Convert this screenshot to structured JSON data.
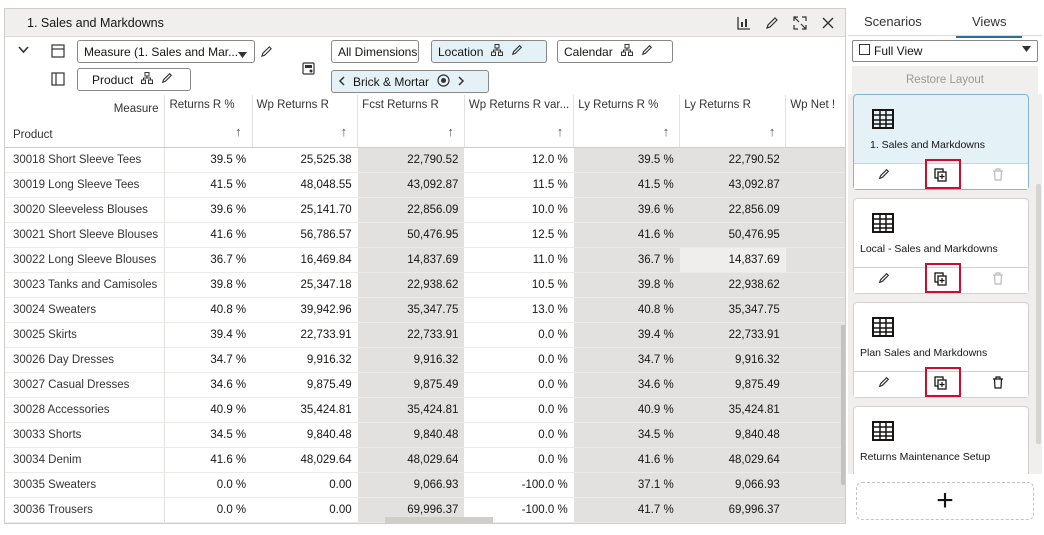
{
  "main": {
    "title": "1. Sales and Markdowns",
    "toolbar": {
      "measure": "Measure (1. Sales and Mar...",
      "product": "Product",
      "all_dimensions": "All Dimensions",
      "location": "Location",
      "calendar": "Calendar",
      "brick_mortar": "Brick & Mortar"
    }
  },
  "grid": {
    "corner_measure": "Measure",
    "corner_product": "Product",
    "columns": [
      "Returns R %",
      "Wp Returns R",
      "Fcst Returns R",
      "Wp Returns R var...",
      "Ly Returns R %",
      "Ly Returns R",
      "Wp Net !"
    ],
    "rows": [
      {
        "product": "30018 Short Sleeve Tees",
        "c1": "39.5 %",
        "c2": "25,525.38",
        "c3": "22,790.52",
        "c4": "12.0 %",
        "c5": "39.5 %",
        "c6": "22,790.52"
      },
      {
        "product": "30019 Long Sleeve Tees",
        "c1": "41.5 %",
        "c2": "48,048.55",
        "c3": "43,092.87",
        "c4": "11.5 %",
        "c5": "41.5 %",
        "c6": "43,092.87"
      },
      {
        "product": "30020 Sleeveless Blouses",
        "c1": "39.6 %",
        "c2": "25,141.70",
        "c3": "22,856.09",
        "c4": "10.0 %",
        "c5": "39.6 %",
        "c6": "22,856.09"
      },
      {
        "product": "30021 Short Sleeve Blouses",
        "c1": "41.6 %",
        "c2": "56,786.57",
        "c3": "50,476.95",
        "c4": "12.5 %",
        "c5": "41.6 %",
        "c6": "50,476.95"
      },
      {
        "product": "30022 Long Sleeve Blouses",
        "c1": "36.7 %",
        "c2": "16,469.84",
        "c3": "14,837.69",
        "c4": "11.0 %",
        "c5": "36.7 %",
        "c6": "14,837.69"
      },
      {
        "product": "30023 Tanks and Camisoles",
        "c1": "39.8 %",
        "c2": "25,347.18",
        "c3": "22,938.62",
        "c4": "10.5 %",
        "c5": "39.8 %",
        "c6": "22,938.62"
      },
      {
        "product": "30024 Sweaters",
        "c1": "40.8 %",
        "c2": "39,942.96",
        "c3": "35,347.75",
        "c4": "13.0 %",
        "c5": "40.8 %",
        "c6": "35,347.75"
      },
      {
        "product": "30025 Skirts",
        "c1": "39.4 %",
        "c2": "22,733.91",
        "c3": "22,733.91",
        "c4": "0.0 %",
        "c5": "39.4 %",
        "c6": "22,733.91"
      },
      {
        "product": "30026 Day Dresses",
        "c1": "34.7 %",
        "c2": "9,916.32",
        "c3": "9,916.32",
        "c4": "0.0 %",
        "c5": "34.7 %",
        "c6": "9,916.32"
      },
      {
        "product": "30027 Casual Dresses",
        "c1": "34.6 %",
        "c2": "9,875.49",
        "c3": "9,875.49",
        "c4": "0.0 %",
        "c5": "34.6 %",
        "c6": "9,875.49"
      },
      {
        "product": "30028 Accessories",
        "c1": "40.9 %",
        "c2": "35,424.81",
        "c3": "35,424.81",
        "c4": "0.0 %",
        "c5": "40.9 %",
        "c6": "35,424.81"
      },
      {
        "product": "30033 Shorts",
        "c1": "34.5 %",
        "c2": "9,840.48",
        "c3": "9,840.48",
        "c4": "0.0 %",
        "c5": "34.5 %",
        "c6": "9,840.48"
      },
      {
        "product": "30034 Denim",
        "c1": "41.6 %",
        "c2": "48,029.64",
        "c3": "48,029.64",
        "c4": "0.0 %",
        "c5": "41.6 %",
        "c6": "48,029.64"
      },
      {
        "product": "30035 Sweaters",
        "c1": "0.0 %",
        "c2": "0.00",
        "c3": "9,066.93",
        "c4": "-100.0 %",
        "c5": "37.1 %",
        "c6": "9,066.93"
      },
      {
        "product": "30036 Trousers",
        "c1": "0.0 %",
        "c2": "0.00",
        "c3": "69,996.37",
        "c4": "-100.0 %",
        "c5": "41.7 %",
        "c6": "69,996.37"
      }
    ]
  },
  "side": {
    "tab_scenarios": "Scenarios",
    "tab_views": "Views",
    "view_select": "Full View",
    "restore": "Restore Layout",
    "cards": [
      {
        "name": "1. Sales and Markdowns"
      },
      {
        "name": "Local - Sales and Markdowns"
      },
      {
        "name": "Plan Sales and Markdowns"
      },
      {
        "name": "Returns Maintenance Setup"
      }
    ],
    "add_label": "+"
  },
  "colors": {
    "accent": "#2b6ca3",
    "highlight": "#c8102e",
    "selected_card": "#e4f1f7",
    "shade": "#e2e1df"
  }
}
